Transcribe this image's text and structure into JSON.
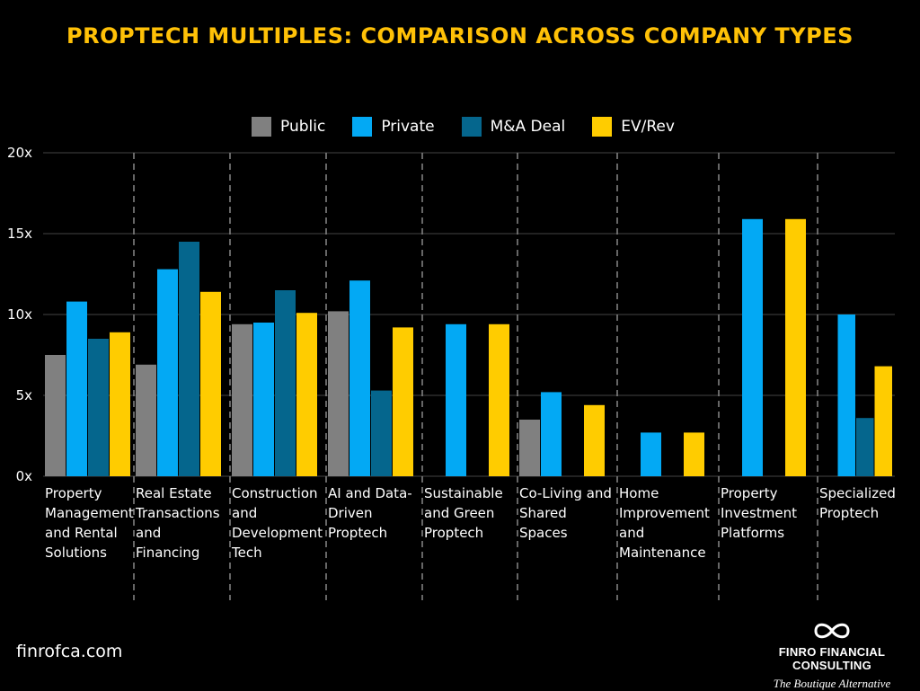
{
  "title": "PROPTECH MULTIPLES: COMPARISON ACROSS COMPANY TYPES",
  "colors": {
    "title": "#FFC107",
    "public": "#808080",
    "private": "#03A9F4",
    "ma_deal": "#05668D",
    "ev_rev": "#FFCC00",
    "grid": "#444444",
    "separator": "#888888"
  },
  "chart_data": {
    "type": "bar",
    "ylim": [
      0,
      20
    ],
    "yticks": [
      0,
      5,
      10,
      15,
      20
    ],
    "ytick_labels": [
      "0x",
      "5x",
      "10x",
      "15x",
      "20x"
    ],
    "grid": true,
    "legend_position": "top-center",
    "categories": [
      "Property Management and Rental Solutions",
      "Real Estate Transactions and Financing",
      "Construction and Development Tech",
      "AI and Data-Driven Proptech",
      "Sustainable and Green Proptech",
      "Co-Living and Shared Spaces",
      "Home Improvement and Maintenance",
      "Property Investment Platforms",
      "Specialized Proptech"
    ],
    "series": [
      {
        "name": "Public",
        "values": [
          7.5,
          6.9,
          9.4,
          10.2,
          null,
          3.5,
          null,
          null,
          null
        ]
      },
      {
        "name": "Private",
        "values": [
          10.8,
          12.8,
          9.5,
          12.1,
          9.4,
          5.2,
          2.7,
          15.9,
          10.0
        ]
      },
      {
        "name": "M&A Deal",
        "values": [
          8.5,
          14.5,
          11.5,
          5.3,
          null,
          null,
          null,
          null,
          3.6
        ]
      },
      {
        "name": "EV/Rev",
        "values": [
          8.9,
          11.4,
          10.1,
          9.2,
          9.4,
          4.4,
          2.7,
          15.9,
          6.8
        ]
      }
    ]
  },
  "footer": {
    "url": "finrofca.com",
    "brand_name": "FINRO FINANCIAL CONSULTING",
    "tagline": "The Boutique Alternative"
  }
}
